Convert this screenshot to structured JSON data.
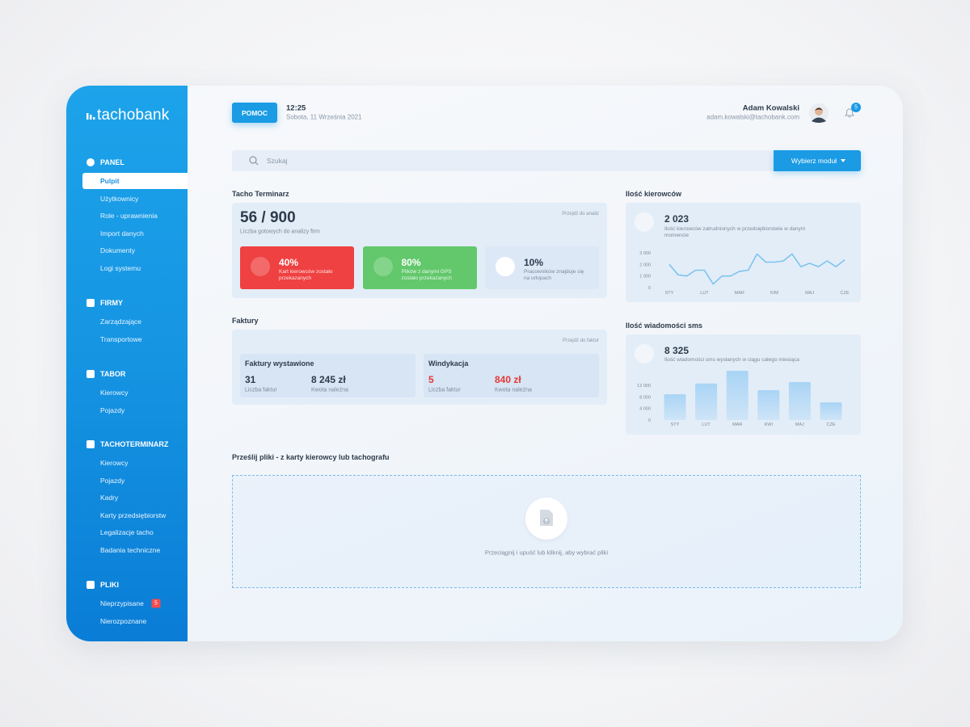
{
  "sidebar": {
    "logo": "tachobank",
    "sections": [
      {
        "title": "PANEL",
        "items": [
          "Pulpit",
          "Użytkownicy",
          "Role - uprawnienia",
          "Import danych",
          "Dokumenty",
          "Logi systemu"
        ]
      },
      {
        "title": "FIRMY",
        "items": [
          "Zarządzające",
          "Transportowe"
        ]
      },
      {
        "title": "TABOR",
        "items": [
          "Kierowcy",
          "Pojazdy"
        ]
      },
      {
        "title": "TACHOTERMINARZ",
        "items": [
          "Kierowcy",
          "Pojazdy",
          "Kadry",
          "Karty przedsiębiorstw",
          "Legalizacje tacho",
          "Badania techniczne"
        ]
      },
      {
        "title": "PLIKI",
        "items": [
          {
            "label": "Nieprzypisane",
            "badge": "5"
          },
          "Nierozpoznane"
        ]
      }
    ]
  },
  "header": {
    "help": "POMOC",
    "time": "12:25",
    "date": "Sobota, 11 Września 2021",
    "user_name": "Adam Kowalski",
    "user_email": "adam.kowalski@tachobank.com",
    "notifications": "5"
  },
  "search": {
    "placeholder": "Szukaj",
    "module_button": "Wybierz moduł"
  },
  "tacho": {
    "title": "Tacho Terminarz",
    "link": "Przejdź do analiz",
    "count": "56 / 900",
    "count_caption": "Liczba gotowych do analizy firm",
    "stats": [
      {
        "value": "40%",
        "text": "Kart kierowców zostało przekazanych"
      },
      {
        "value": "80%",
        "text": "Plików z danymi GPS zostało przekazanych"
      },
      {
        "value": "10%",
        "text": "Pracowników znajduje się na urlopach"
      }
    ]
  },
  "invoices": {
    "title": "Faktury",
    "link": "Przejdź do faktur",
    "groups": [
      {
        "title": "Faktury wystawione",
        "items": [
          {
            "value": "31",
            "label": "Liczba faktur"
          },
          {
            "value": "8 245 zł",
            "label": "Kwota należna"
          }
        ]
      },
      {
        "title": "Windykacja",
        "items": [
          {
            "value": "5",
            "label": "Liczba faktur"
          },
          {
            "value": "840 zł",
            "label": "Kwota należna"
          }
        ]
      }
    ]
  },
  "drivers": {
    "title": "Ilość kierowców",
    "count": "2 023",
    "caption": "Ilość kierowców zatrudnionych w przedsiębiorstwie w danym momencie"
  },
  "sms": {
    "title": "Ilość wiadomości sms",
    "count": "8 325",
    "caption": "Ilość wiadomości sms wysłanych w ciągu całego miesiąca"
  },
  "upload": {
    "title": "Prześlij pliki - z karty kierowcy lub tachografu",
    "hint": "Przeciągnij i upuść lub kliknij, aby wybrać pliki"
  },
  "chart_data": [
    {
      "type": "line",
      "color": "#7cc4ef",
      "categories": [
        "STY",
        null,
        null,
        null,
        "LUT",
        null,
        null,
        null,
        "MAR",
        null,
        null,
        null,
        "KWI",
        null,
        null,
        null,
        "MAJ",
        null,
        null,
        null,
        "CZE"
      ],
      "values": [
        2000,
        1100,
        1000,
        1500,
        1500,
        300,
        1000,
        1000,
        1400,
        1500,
        2900,
        2200,
        2200,
        2300,
        2900,
        1800,
        2100,
        1800,
        2300,
        1800,
        2400
      ],
      "ylim": [
        0,
        3000
      ],
      "yticks": [
        0,
        {
          "value": 1000,
          "label": "1 000"
        },
        {
          "value": 2000,
          "label": "2 000"
        },
        {
          "value": 3000,
          "label": "3 000"
        }
      ]
    },
    {
      "type": "bar",
      "color": "#a9d4f5",
      "categories": [
        "STY",
        "LUT",
        "MAR",
        "KWI",
        "MAJ",
        "CZE"
      ],
      "values": [
        8900,
        12600,
        17000,
        10300,
        13100,
        6100
      ],
      "ylim": [
        0,
        17000
      ],
      "yticks": [
        0,
        {
          "value": 4000,
          "label": "4 000"
        },
        {
          "value": 8000,
          "label": "8 000"
        },
        {
          "value": 12000,
          "label": "12 000"
        }
      ]
    }
  ]
}
